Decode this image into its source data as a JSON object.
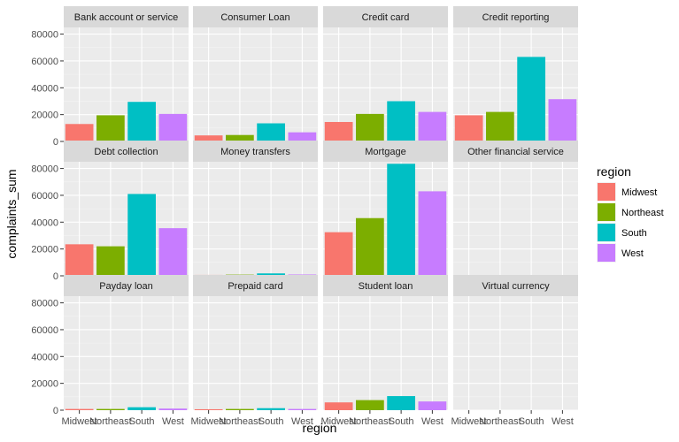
{
  "chart_data": {
    "type": "bar",
    "facet": "wrap",
    "xlabel": "region",
    "ylabel": "complaints_sum",
    "ylim": [
      0,
      85000
    ],
    "yticks": [
      0,
      20000,
      40000,
      60000,
      80000
    ],
    "ytick_labels": [
      "0",
      "20000",
      "40000",
      "60000",
      "80000"
    ],
    "categories": [
      "Midwest",
      "Northeast",
      "South",
      "West"
    ],
    "colors": {
      "Midwest": "#F8766D",
      "Northeast": "#7CAE00",
      "South": "#00BFC4",
      "West": "#C77CFF"
    },
    "grid": true,
    "legend": {
      "title": "region",
      "position": "right",
      "entries": [
        "Midwest",
        "Northeast",
        "South",
        "West"
      ]
    },
    "panels": [
      {
        "title": "Bank account or service",
        "values": [
          13000,
          19500,
          29500,
          20500
        ]
      },
      {
        "title": "Consumer Loan",
        "values": [
          4500,
          4800,
          13500,
          6800
        ]
      },
      {
        "title": "Credit card",
        "values": [
          14500,
          20500,
          30000,
          22000
        ]
      },
      {
        "title": "Credit reporting",
        "values": [
          19500,
          22000,
          63000,
          31500
        ]
      },
      {
        "title": "Debt collection",
        "values": [
          23500,
          22000,
          61000,
          35500
        ]
      },
      {
        "title": "Money transfers",
        "values": [
          700,
          900,
          1800,
          1000
        ]
      },
      {
        "title": "Mortgage",
        "values": [
          32500,
          43000,
          83500,
          63000
        ]
      },
      {
        "title": "Other financial service",
        "values": [
          50,
          60,
          120,
          70
        ]
      },
      {
        "title": "Payday loan",
        "values": [
          900,
          900,
          2200,
          1200
        ]
      },
      {
        "title": "Prepaid card",
        "values": [
          700,
          900,
          1500,
          900
        ]
      },
      {
        "title": "Student loan",
        "values": [
          5800,
          7500,
          10500,
          6500
        ]
      },
      {
        "title": "Virtual currency",
        "values": [
          2,
          2,
          4,
          3
        ]
      }
    ]
  }
}
